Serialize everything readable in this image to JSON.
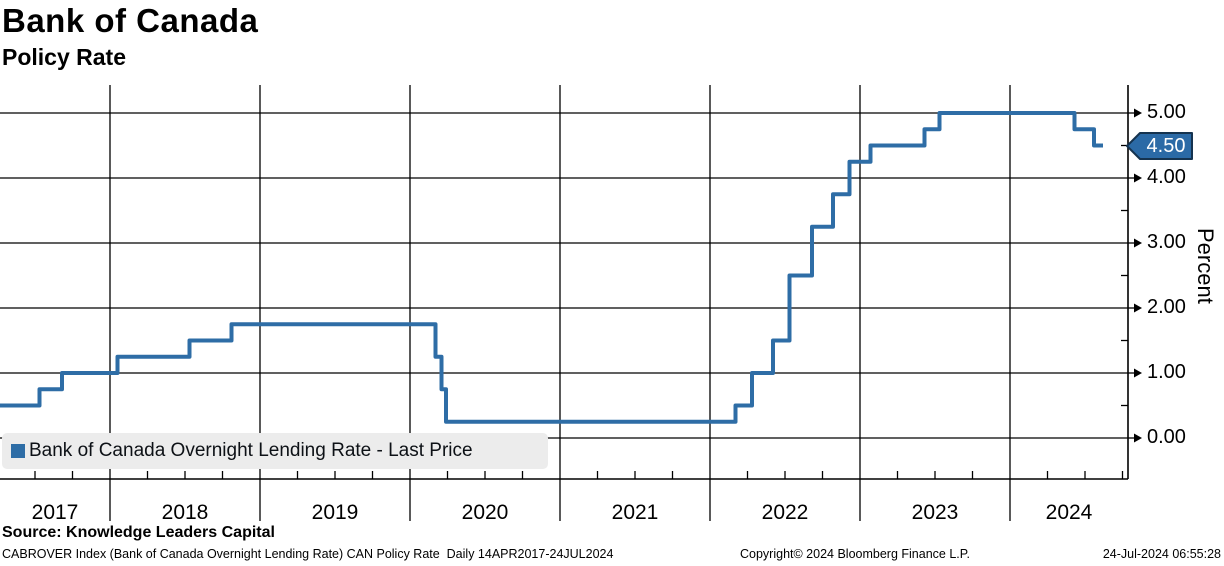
{
  "header": {
    "title": "Bank of Canada",
    "subtitle": "Policy Rate"
  },
  "chart_data": {
    "type": "line",
    "step_interpolation": true,
    "title": "Bank of Canada",
    "subtitle": "Policy Rate",
    "ylabel": "Percent",
    "ylim": [
      0,
      5.4
    ],
    "grid": true,
    "legend_position": "bottom-left",
    "legend_label": "Bank of Canada Overnight Lending Rate - Last Price",
    "last_price": "4.50",
    "x_years": [
      "2017",
      "2018",
      "2019",
      "2020",
      "2021",
      "2022",
      "2023",
      "2024"
    ],
    "x_range": "14APR2017-24JUL2024",
    "y_ticks": [
      {
        "value": 0,
        "label": "0.00"
      },
      {
        "value": 1,
        "label": "1.00"
      },
      {
        "value": 2,
        "label": "2.00"
      },
      {
        "value": 3,
        "label": "3.00"
      },
      {
        "value": 4,
        "label": "4.00"
      },
      {
        "value": 5,
        "label": "5.00"
      }
    ],
    "colors": {
      "line": "#2e6da6",
      "grid": "#000000",
      "axis": "#000000",
      "badge_fill": "#2b6aa6",
      "badge_border": "#15334f",
      "badge_text": "#ffffff",
      "legend_bg": "#ececec"
    },
    "series": [
      {
        "name": "Bank of Canada Overnight Lending Rate",
        "points": [
          {
            "date": "14APR2017",
            "t": 2017.28,
            "rate": 0.5
          },
          {
            "date": "12JUL2017",
            "t": 2017.53,
            "rate": 0.75
          },
          {
            "date": "06SEP2017",
            "t": 2017.68,
            "rate": 1.0
          },
          {
            "date": "17JAN2018",
            "t": 2018.05,
            "rate": 1.25
          },
          {
            "date": "11JUL2018",
            "t": 2018.53,
            "rate": 1.5
          },
          {
            "date": "24OCT2018",
            "t": 2018.81,
            "rate": 1.75
          },
          {
            "date": "04MAR2020",
            "t": 2020.17,
            "rate": 1.25
          },
          {
            "date": "16MAR2020",
            "t": 2020.21,
            "rate": 0.75
          },
          {
            "date": "27MAR2020",
            "t": 2020.24,
            "rate": 0.25
          },
          {
            "date": "02MAR2022",
            "t": 2022.17,
            "rate": 0.5
          },
          {
            "date": "13APR2022",
            "t": 2022.28,
            "rate": 1.0
          },
          {
            "date": "01JUN2022",
            "t": 2022.42,
            "rate": 1.5
          },
          {
            "date": "13JUL2022",
            "t": 2022.53,
            "rate": 2.5
          },
          {
            "date": "07SEP2022",
            "t": 2022.68,
            "rate": 3.25
          },
          {
            "date": "26OCT2022",
            "t": 2022.82,
            "rate": 3.75
          },
          {
            "date": "07DEC2022",
            "t": 2022.93,
            "rate": 4.25
          },
          {
            "date": "25JAN2023",
            "t": 2023.07,
            "rate": 4.5
          },
          {
            "date": "07JUN2023",
            "t": 2023.43,
            "rate": 4.75
          },
          {
            "date": "12JUL2023",
            "t": 2023.53,
            "rate": 5.0
          },
          {
            "date": "05JUN2024",
            "t": 2024.43,
            "rate": 4.75
          },
          {
            "date": "24JUL2024",
            "t": 2024.56,
            "rate": 4.5
          }
        ]
      }
    ]
  },
  "footer": {
    "source": "Source: Knowledge Leaders Capital",
    "ticker_line": "CABROVER Index (Bank of Canada Overnight Lending Rate) CAN Policy Rate  Daily 14APR2017-24JUL2024",
    "copyright": "Copyright© 2024 Bloomberg Finance L.P.",
    "timestamp": "24-Jul-2024 06:55:28"
  }
}
